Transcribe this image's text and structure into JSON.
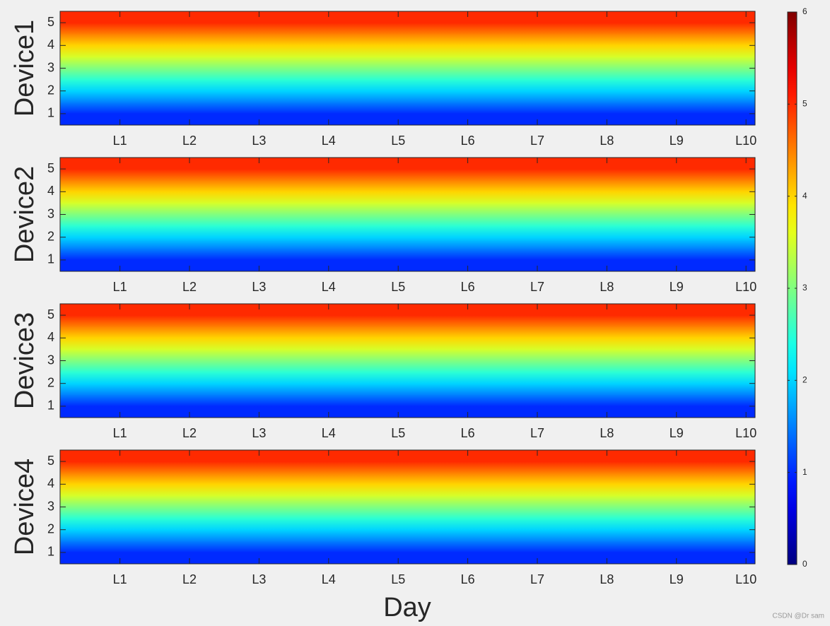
{
  "chart_data": {
    "type": "heatmap",
    "colormap": "jet",
    "clim": [
      0,
      6
    ],
    "cticks": [
      0,
      1,
      2,
      3,
      4,
      5,
      6
    ],
    "xlabel": "Day",
    "watermark": "CSDN @Dr sam",
    "panels": [
      {
        "ylabel": "Device1",
        "x": [
          1,
          2,
          3,
          4,
          5,
          6,
          7,
          8,
          9,
          10
        ],
        "y": [
          1,
          2,
          3,
          4,
          5
        ],
        "xlim": [
          0.14,
          10.13
        ],
        "ylim": [
          0.5,
          5.5
        ],
        "yticks": [
          1,
          2,
          3,
          4,
          5
        ],
        "xticks": [
          {
            "value": 1,
            "label": "L1"
          },
          {
            "value": 2,
            "label": "L2"
          },
          {
            "value": 3,
            "label": "L3"
          },
          {
            "value": 4,
            "label": "L4"
          },
          {
            "value": 5,
            "label": "L5"
          },
          {
            "value": 6,
            "label": "L6"
          },
          {
            "value": 7,
            "label": "L7"
          },
          {
            "value": 8,
            "label": "L8"
          },
          {
            "value": 9,
            "label": "L9"
          },
          {
            "value": 10,
            "label": "L10"
          }
        ],
        "z": [
          [
            1,
            1,
            1,
            1,
            1,
            1,
            1,
            1,
            1,
            1
          ],
          [
            2,
            2,
            2,
            2,
            2,
            2,
            2,
            2,
            2,
            2
          ],
          [
            3,
            3,
            3,
            3,
            3,
            3,
            3,
            3,
            3,
            3
          ],
          [
            4,
            4,
            4,
            4,
            4,
            4,
            4,
            4,
            4,
            4
          ],
          [
            5,
            5,
            5,
            5,
            5,
            5,
            5,
            5,
            5,
            5
          ]
        ]
      },
      {
        "ylabel": "Device2",
        "x": [
          1,
          2,
          3,
          4,
          5,
          6,
          7,
          8,
          9,
          10
        ],
        "y": [
          1,
          2,
          3,
          4,
          5
        ],
        "xlim": [
          0.14,
          10.13
        ],
        "ylim": [
          0.5,
          5.5
        ],
        "yticks": [
          1,
          2,
          3,
          4,
          5
        ],
        "xticks": [
          {
            "value": 1,
            "label": "L1"
          },
          {
            "value": 2,
            "label": "L2"
          },
          {
            "value": 3,
            "label": "L3"
          },
          {
            "value": 4,
            "label": "L4"
          },
          {
            "value": 5,
            "label": "L5"
          },
          {
            "value": 6,
            "label": "L6"
          },
          {
            "value": 7,
            "label": "L7"
          },
          {
            "value": 8,
            "label": "L8"
          },
          {
            "value": 9,
            "label": "L9"
          },
          {
            "value": 10,
            "label": "L10"
          }
        ],
        "z": [
          [
            1,
            1,
            1,
            1,
            1,
            1,
            1,
            1,
            1,
            1
          ],
          [
            2,
            2,
            2,
            2,
            2,
            2,
            2,
            2,
            2,
            2
          ],
          [
            3,
            3,
            3,
            3,
            3,
            3,
            3,
            3,
            3,
            3
          ],
          [
            4,
            4,
            4,
            4,
            4,
            4,
            4,
            4,
            4,
            4
          ],
          [
            5,
            5,
            5,
            5,
            5,
            5,
            5,
            5,
            5,
            5
          ]
        ]
      },
      {
        "ylabel": "Device3",
        "x": [
          1,
          2,
          3,
          4,
          5,
          6,
          7,
          8,
          9,
          10
        ],
        "y": [
          1,
          2,
          3,
          4,
          5
        ],
        "xlim": [
          0.14,
          10.13
        ],
        "ylim": [
          0.5,
          5.5
        ],
        "yticks": [
          1,
          2,
          3,
          4,
          5
        ],
        "xticks": [
          {
            "value": 1,
            "label": "L1"
          },
          {
            "value": 2,
            "label": "L2"
          },
          {
            "value": 3,
            "label": "L3"
          },
          {
            "value": 4,
            "label": "L4"
          },
          {
            "value": 5,
            "label": "L5"
          },
          {
            "value": 6,
            "label": "L6"
          },
          {
            "value": 7,
            "label": "L7"
          },
          {
            "value": 8,
            "label": "L8"
          },
          {
            "value": 9,
            "label": "L9"
          },
          {
            "value": 10,
            "label": "L10"
          }
        ],
        "z": [
          [
            1,
            1,
            1,
            1,
            1,
            1,
            1,
            1,
            1,
            1
          ],
          [
            2,
            2,
            2,
            2,
            2,
            2,
            2,
            2,
            2,
            2
          ],
          [
            3,
            3,
            3,
            3,
            3,
            3,
            3,
            3,
            3,
            3
          ],
          [
            4,
            4,
            4,
            4,
            4,
            4,
            4,
            4,
            4,
            4
          ],
          [
            5,
            5,
            5,
            5,
            5,
            5,
            5,
            5,
            5,
            5
          ]
        ]
      },
      {
        "ylabel": "Device4",
        "x": [
          1,
          2,
          3,
          4,
          5,
          6,
          7,
          8,
          9,
          10
        ],
        "y": [
          1,
          2,
          3,
          4,
          5
        ],
        "xlim": [
          0.14,
          10.13
        ],
        "ylim": [
          0.5,
          5.5
        ],
        "yticks": [
          1,
          2,
          3,
          4,
          5
        ],
        "xticks": [
          {
            "value": 1,
            "label": "L1"
          },
          {
            "value": 2,
            "label": "L2"
          },
          {
            "value": 3,
            "label": "L3"
          },
          {
            "value": 4,
            "label": "L4"
          },
          {
            "value": 5,
            "label": "L5"
          },
          {
            "value": 6,
            "label": "L6"
          },
          {
            "value": 7,
            "label": "L7"
          },
          {
            "value": 8,
            "label": "L8"
          },
          {
            "value": 9,
            "label": "L9"
          },
          {
            "value": 10,
            "label": "L10"
          }
        ],
        "z": [
          [
            1,
            1,
            1,
            1,
            1,
            1,
            1,
            1,
            1,
            1
          ],
          [
            2,
            2,
            2,
            2,
            2,
            2,
            2,
            2,
            2,
            2
          ],
          [
            3,
            3,
            3,
            3,
            3,
            3,
            3,
            3,
            3,
            3
          ],
          [
            4,
            4,
            4,
            4,
            4,
            4,
            4,
            4,
            4,
            4
          ],
          [
            5,
            5,
            5,
            5,
            5,
            5,
            5,
            5,
            5,
            5
          ]
        ]
      }
    ]
  }
}
